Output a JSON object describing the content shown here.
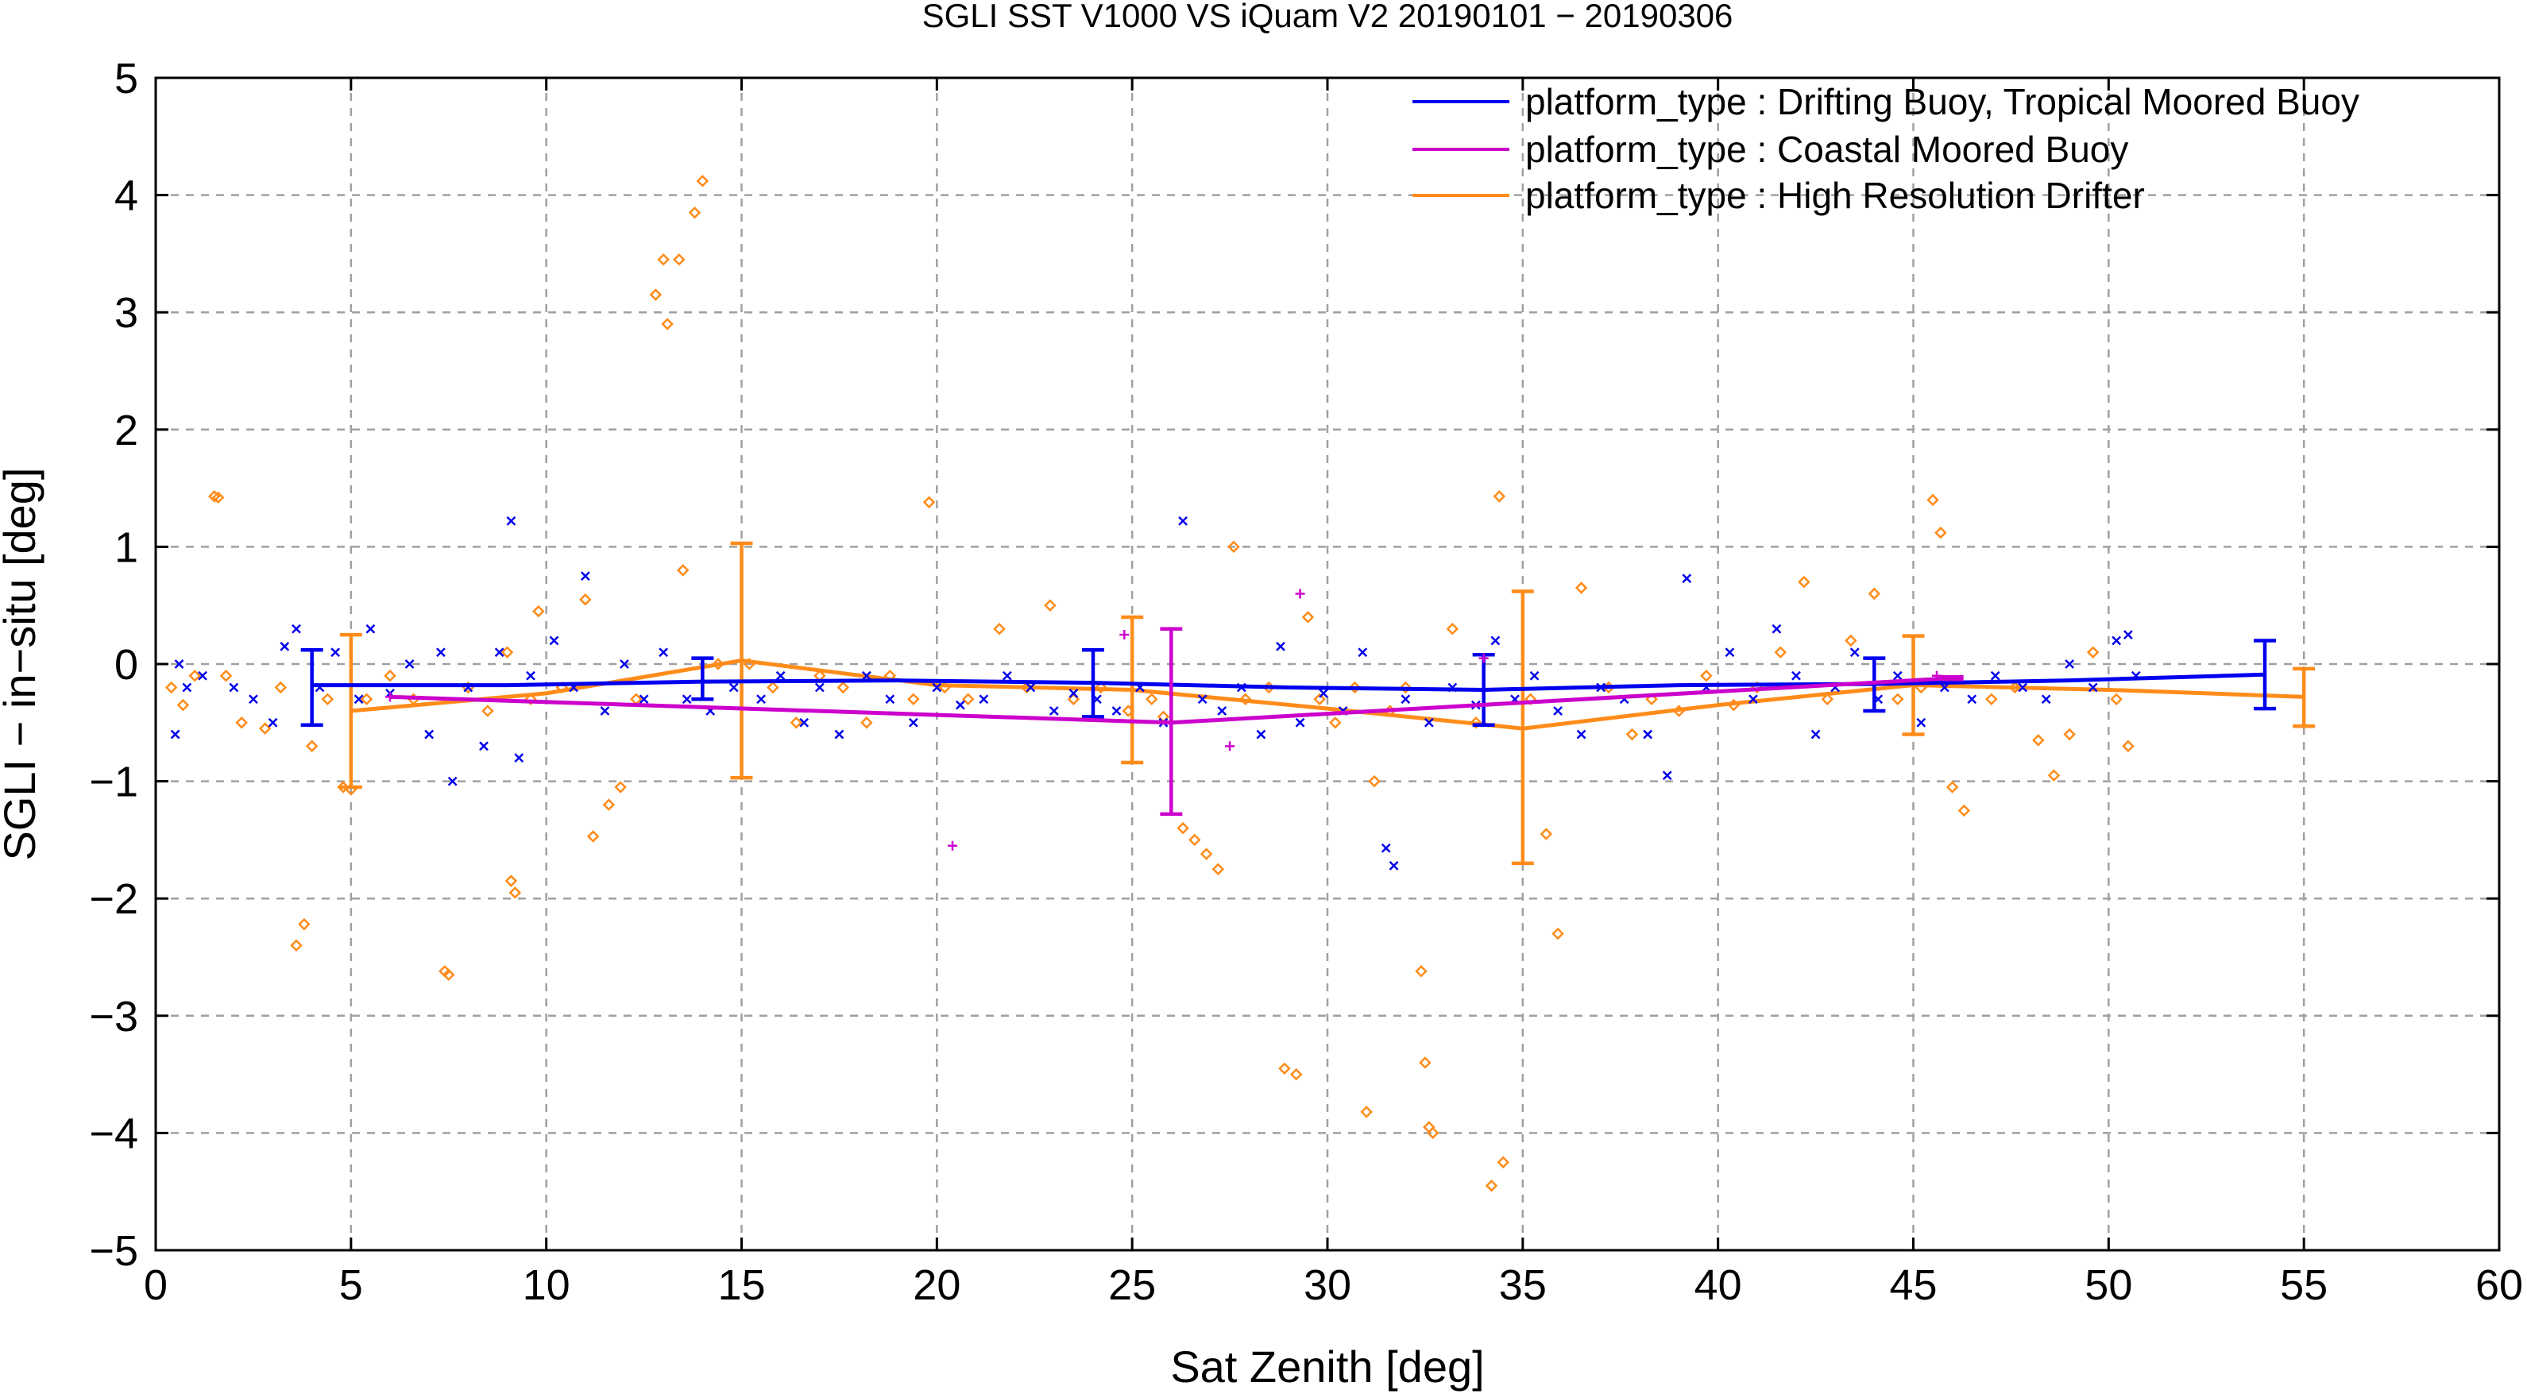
{
  "chart_data": {
    "type": "scatter",
    "title": "SGLI SST V1000 VS iQuam V2 20190101 − 20190306",
    "xlabel": "Sat Zenith [deg]",
    "ylabel": "SGLI − in−situ [deg]",
    "xlim": [
      0,
      60
    ],
    "ylim": [
      -5,
      5
    ],
    "xticks": [
      0,
      5,
      10,
      15,
      20,
      25,
      30,
      35,
      40,
      45,
      50,
      55,
      60
    ],
    "yticks": [
      -5,
      -4,
      -3,
      -2,
      -1,
      0,
      1,
      2,
      3,
      4,
      5
    ],
    "xtick_labels": [
      "0",
      "5",
      "10",
      "15",
      "20",
      "25",
      "30",
      "35",
      "40",
      "45",
      "50",
      "55",
      "60"
    ],
    "ytick_labels": [
      "−5",
      "−4",
      "−3",
      "−2",
      "−1",
      "0",
      "1",
      "2",
      "3",
      "4",
      "5"
    ],
    "grid": true,
    "legend_position": "top-right",
    "series": [
      {
        "name": "platform_type : Drifting Buoy, Tropical Moored Buoy",
        "color": "#0000ee",
        "marker": "x",
        "line": {
          "x": [
            4,
            9,
            14,
            19,
            24,
            29,
            34,
            39,
            44,
            49,
            54
          ],
          "y": [
            -0.18,
            -0.18,
            -0.15,
            -0.14,
            -0.16,
            -0.2,
            -0.22,
            -0.18,
            -0.17,
            -0.14,
            -0.09
          ]
        },
        "errorbars": [
          {
            "x": 4,
            "low": -0.52,
            "high": 0.12
          },
          {
            "x": 14,
            "low": -0.3,
            "high": 0.05
          },
          {
            "x": 24,
            "low": -0.45,
            "high": 0.12
          },
          {
            "x": 34,
            "low": -0.52,
            "high": 0.08
          },
          {
            "x": 44,
            "low": -0.4,
            "high": 0.05
          },
          {
            "x": 54,
            "low": -0.38,
            "high": 0.2
          }
        ],
        "points": [
          [
            0.5,
            -0.6
          ],
          [
            0.6,
            0.0
          ],
          [
            0.8,
            -0.2
          ],
          [
            1.2,
            -0.1
          ],
          [
            2.0,
            -0.2
          ],
          [
            2.5,
            -0.3
          ],
          [
            3.0,
            -0.5
          ],
          [
            3.3,
            0.15
          ],
          [
            3.6,
            0.3
          ],
          [
            4.2,
            -0.2
          ],
          [
            4.6,
            0.1
          ],
          [
            5.2,
            -0.3
          ],
          [
            5.5,
            0.3
          ],
          [
            6.0,
            -0.25
          ],
          [
            6.5,
            0.0
          ],
          [
            7.0,
            -0.6
          ],
          [
            7.3,
            0.1
          ],
          [
            7.6,
            -1.0
          ],
          [
            8.0,
            -0.2
          ],
          [
            8.4,
            -0.7
          ],
          [
            8.8,
            0.1
          ],
          [
            9.1,
            1.22
          ],
          [
            9.3,
            -0.8
          ],
          [
            9.6,
            -0.1
          ],
          [
            10.2,
            0.2
          ],
          [
            10.7,
            -0.2
          ],
          [
            11.0,
            0.75
          ],
          [
            11.5,
            -0.4
          ],
          [
            12.0,
            0.0
          ],
          [
            12.5,
            -0.3
          ],
          [
            13.0,
            0.1
          ],
          [
            13.6,
            -0.3
          ],
          [
            14.2,
            -0.4
          ],
          [
            14.8,
            -0.2
          ],
          [
            15.5,
            -0.3
          ],
          [
            16.0,
            -0.1
          ],
          [
            16.6,
            -0.5
          ],
          [
            17.0,
            -0.2
          ],
          [
            17.5,
            -0.6
          ],
          [
            18.2,
            -0.1
          ],
          [
            18.8,
            -0.3
          ],
          [
            19.4,
            -0.5
          ],
          [
            20.0,
            -0.2
          ],
          [
            20.6,
            -0.35
          ],
          [
            21.2,
            -0.3
          ],
          [
            21.8,
            -0.1
          ],
          [
            22.4,
            -0.2
          ],
          [
            23.0,
            -0.4
          ],
          [
            23.5,
            -0.25
          ],
          [
            24.1,
            -0.3
          ],
          [
            24.6,
            -0.4
          ],
          [
            25.2,
            -0.2
          ],
          [
            25.8,
            -0.5
          ],
          [
            26.3,
            1.22
          ],
          [
            26.8,
            -0.3
          ],
          [
            27.3,
            -0.4
          ],
          [
            27.8,
            -0.2
          ],
          [
            28.3,
            -0.6
          ],
          [
            28.8,
            0.15
          ],
          [
            29.3,
            -0.5
          ],
          [
            29.9,
            -0.25
          ],
          [
            30.4,
            -0.4
          ],
          [
            30.9,
            0.1
          ],
          [
            31.5,
            -1.57
          ],
          [
            31.7,
            -1.72
          ],
          [
            32.0,
            -0.3
          ],
          [
            32.6,
            -0.5
          ],
          [
            33.2,
            -0.2
          ],
          [
            33.8,
            -0.35
          ],
          [
            34.3,
            0.2
          ],
          [
            34.8,
            -0.3
          ],
          [
            35.3,
            -0.1
          ],
          [
            35.9,
            -0.4
          ],
          [
            36.5,
            -0.6
          ],
          [
            37.0,
            -0.2
          ],
          [
            37.6,
            -0.3
          ],
          [
            38.2,
            -0.6
          ],
          [
            38.7,
            -0.95
          ],
          [
            39.2,
            0.73
          ],
          [
            39.7,
            -0.2
          ],
          [
            40.3,
            0.1
          ],
          [
            40.9,
            -0.3
          ],
          [
            41.5,
            0.3
          ],
          [
            42.0,
            -0.1
          ],
          [
            42.5,
            -0.6
          ],
          [
            43.0,
            -0.2
          ],
          [
            43.5,
            0.1
          ],
          [
            44.1,
            -0.3
          ],
          [
            44.6,
            -0.1
          ],
          [
            45.2,
            -0.5
          ],
          [
            45.8,
            -0.2
          ],
          [
            46.5,
            -0.3
          ],
          [
            47.1,
            -0.1
          ],
          [
            47.8,
            -0.2
          ],
          [
            48.4,
            -0.3
          ],
          [
            49.0,
            0.0
          ],
          [
            49.6,
            -0.2
          ],
          [
            50.2,
            0.2
          ],
          [
            50.5,
            0.25
          ],
          [
            50.7,
            -0.1
          ]
        ]
      },
      {
        "name": "platform_type : Coastal Moored Buoy",
        "color": "#cc00cc",
        "marker": "+",
        "line": {
          "x": [
            6,
            26,
            46
          ],
          "y": [
            -0.28,
            -0.5,
            -0.12
          ]
        },
        "errorbars": [
          {
            "x": 26,
            "low": -1.28,
            "high": 0.3
          },
          {
            "x": 46,
            "low": -0.13,
            "high": -0.11
          }
        ],
        "points": [
          [
            6.0,
            -0.28
          ],
          [
            20.4,
            -1.55
          ],
          [
            24.8,
            0.25
          ],
          [
            27.5,
            -0.7
          ],
          [
            29.3,
            0.6
          ],
          [
            34.0,
            0.05
          ],
          [
            45.6,
            -0.1
          ]
        ]
      },
      {
        "name": "platform_type : High Resolution Drifter",
        "color": "#ff8c1a",
        "marker": "diamond",
        "line": {
          "x": [
            5,
            10,
            15,
            20,
            25,
            30,
            35,
            40,
            45,
            50,
            55
          ],
          "y": [
            -0.4,
            -0.25,
            0.03,
            -0.18,
            -0.22,
            -0.38,
            -0.55,
            -0.35,
            -0.18,
            -0.22,
            -0.28
          ]
        },
        "errorbars": [
          {
            "x": 5,
            "low": -1.05,
            "high": 0.25
          },
          {
            "x": 15,
            "low": -0.97,
            "high": 1.03
          },
          {
            "x": 25,
            "low": -0.84,
            "high": 0.4
          },
          {
            "x": 35,
            "low": -1.7,
            "high": 0.62
          },
          {
            "x": 45,
            "low": -0.6,
            "high": 0.24
          },
          {
            "x": 55,
            "low": -0.53,
            "high": -0.04
          }
        ],
        "points": [
          [
            0.4,
            -0.2
          ],
          [
            0.7,
            -0.35
          ],
          [
            1.0,
            -0.1
          ],
          [
            1.5,
            1.43
          ],
          [
            1.6,
            1.42
          ],
          [
            1.8,
            -0.1
          ],
          [
            2.2,
            -0.5
          ],
          [
            2.8,
            -0.55
          ],
          [
            3.2,
            -0.2
          ],
          [
            3.6,
            -2.4
          ],
          [
            3.8,
            -2.22
          ],
          [
            4.0,
            -0.7
          ],
          [
            4.4,
            -0.3
          ],
          [
            4.8,
            -1.05
          ],
          [
            5.0,
            -1.07
          ],
          [
            5.4,
            -0.3
          ],
          [
            6.0,
            -0.1
          ],
          [
            6.6,
            -0.3
          ],
          [
            7.4,
            -2.62
          ],
          [
            7.5,
            -2.65
          ],
          [
            8.0,
            -0.2
          ],
          [
            8.5,
            -0.4
          ],
          [
            9.0,
            0.1
          ],
          [
            9.1,
            -1.85
          ],
          [
            9.2,
            -1.95
          ],
          [
            9.6,
            -0.3
          ],
          [
            9.8,
            0.45
          ],
          [
            10.4,
            -0.2
          ],
          [
            11.0,
            0.55
          ],
          [
            11.2,
            -1.47
          ],
          [
            11.6,
            -1.2
          ],
          [
            11.9,
            -1.05
          ],
          [
            12.3,
            -0.3
          ],
          [
            12.8,
            3.15
          ],
          [
            13.0,
            3.45
          ],
          [
            13.1,
            2.9
          ],
          [
            13.4,
            3.45
          ],
          [
            13.5,
            0.8
          ],
          [
            13.8,
            3.85
          ],
          [
            14.0,
            4.12
          ],
          [
            14.4,
            0.0
          ],
          [
            15.2,
            0.0
          ],
          [
            15.8,
            -0.2
          ],
          [
            16.4,
            -0.5
          ],
          [
            17.0,
            -0.1
          ],
          [
            17.6,
            -0.2
          ],
          [
            18.2,
            -0.5
          ],
          [
            18.8,
            -0.1
          ],
          [
            19.4,
            -0.3
          ],
          [
            19.8,
            1.38
          ],
          [
            20.2,
            -0.2
          ],
          [
            20.8,
            -0.3
          ],
          [
            21.6,
            0.3
          ],
          [
            22.3,
            -0.2
          ],
          [
            22.9,
            0.5
          ],
          [
            23.5,
            -0.3
          ],
          [
            24.2,
            -0.2
          ],
          [
            24.9,
            -0.4
          ],
          [
            25.5,
            -0.3
          ],
          [
            25.8,
            -0.45
          ],
          [
            26.3,
            -1.4
          ],
          [
            26.6,
            -1.5
          ],
          [
            26.9,
            -1.62
          ],
          [
            27.2,
            -1.75
          ],
          [
            27.6,
            1.0
          ],
          [
            27.9,
            -0.3
          ],
          [
            28.5,
            -0.2
          ],
          [
            28.9,
            -3.45
          ],
          [
            29.2,
            -3.5
          ],
          [
            29.5,
            0.4
          ],
          [
            29.8,
            -0.3
          ],
          [
            30.2,
            -0.5
          ],
          [
            30.7,
            -0.2
          ],
          [
            31.0,
            -3.82
          ],
          [
            31.2,
            -1.0
          ],
          [
            31.6,
            -0.4
          ],
          [
            32.0,
            -0.2
          ],
          [
            32.4,
            -2.62
          ],
          [
            32.5,
            -3.4
          ],
          [
            32.6,
            -3.95
          ],
          [
            32.7,
            -4.0
          ],
          [
            33.2,
            0.3
          ],
          [
            33.8,
            -0.5
          ],
          [
            34.2,
            -4.45
          ],
          [
            34.4,
            1.43
          ],
          [
            34.5,
            -4.25
          ],
          [
            35.2,
            -0.3
          ],
          [
            35.6,
            -1.45
          ],
          [
            35.9,
            -2.3
          ],
          [
            36.5,
            0.65
          ],
          [
            37.2,
            -0.2
          ],
          [
            37.8,
            -0.6
          ],
          [
            38.3,
            -0.3
          ],
          [
            39.0,
            -0.4
          ],
          [
            39.7,
            -0.1
          ],
          [
            40.4,
            -0.35
          ],
          [
            41.0,
            -0.2
          ],
          [
            41.6,
            0.1
          ],
          [
            42.2,
            0.7
          ],
          [
            42.8,
            -0.3
          ],
          [
            43.4,
            0.2
          ],
          [
            44.0,
            0.6
          ],
          [
            44.6,
            -0.3
          ],
          [
            45.2,
            -0.2
          ],
          [
            45.5,
            1.4
          ],
          [
            45.7,
            1.12
          ],
          [
            46.0,
            -1.05
          ],
          [
            46.3,
            -1.25
          ],
          [
            47.0,
            -0.3
          ],
          [
            47.6,
            -0.2
          ],
          [
            48.2,
            -0.65
          ],
          [
            48.6,
            -0.95
          ],
          [
            49.0,
            -0.6
          ],
          [
            49.6,
            0.1
          ],
          [
            50.2,
            -0.3
          ],
          [
            50.5,
            -0.7
          ]
        ]
      }
    ]
  }
}
